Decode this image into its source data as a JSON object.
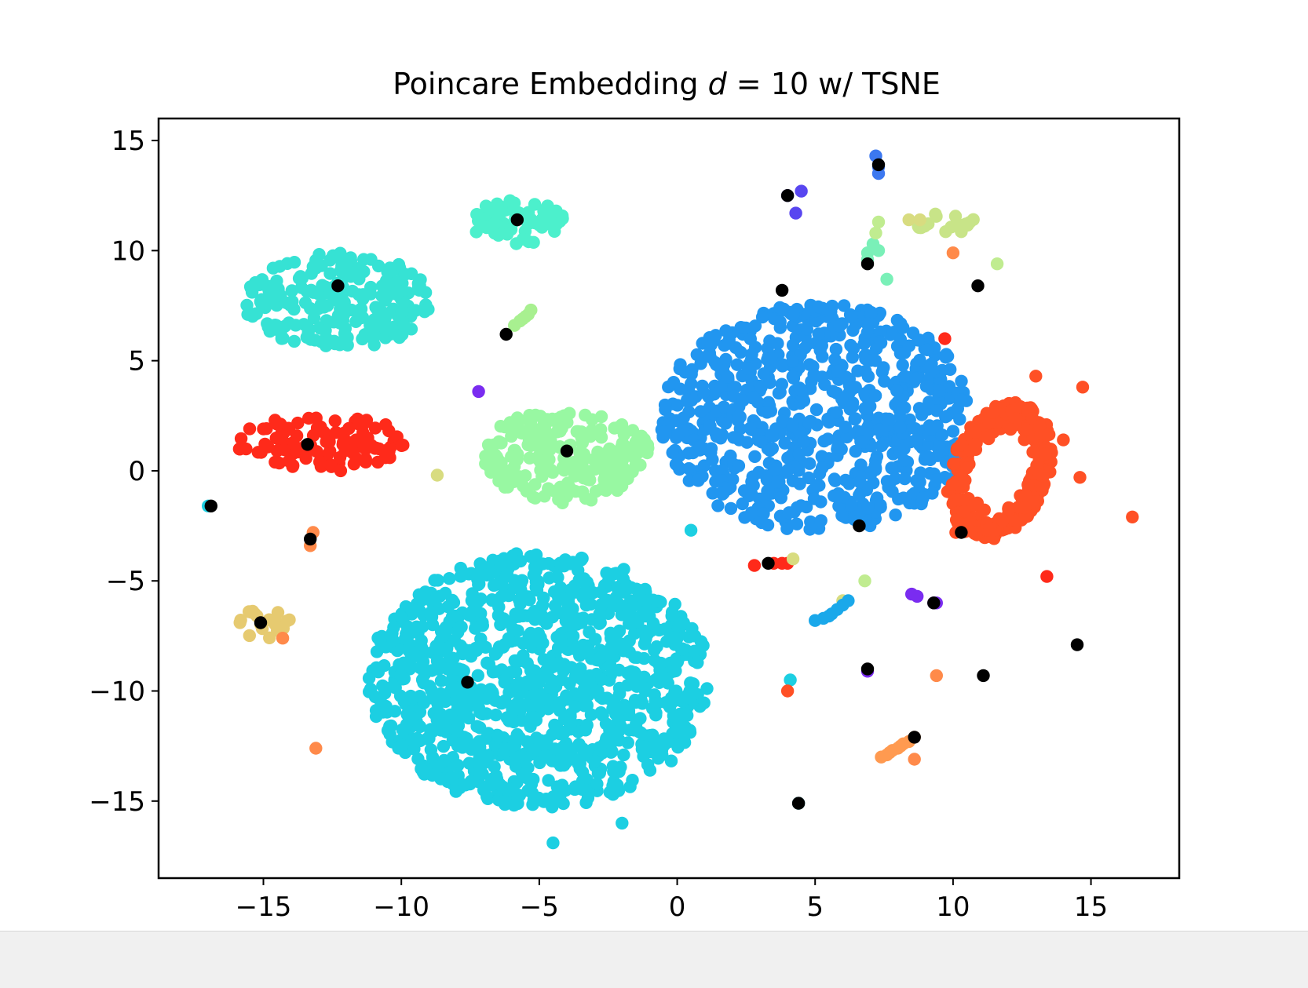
{
  "chart_data": {
    "type": "scatter",
    "title_prefix": "Poincare Embedding ",
    "title_var": "d",
    "title_suffix": " = 10 w/ TSNE",
    "xlim": [
      -18.8,
      18.2
    ],
    "ylim": [
      -18.5,
      16.0
    ],
    "xticks": [
      -15,
      -10,
      -5,
      0,
      5,
      10,
      15
    ],
    "yticks": [
      15,
      10,
      5,
      0,
      -5,
      -10,
      -15
    ],
    "xtick_labels": [
      "−15",
      "−10",
      "−5",
      "0",
      "5",
      "10",
      "15"
    ],
    "ytick_labels": [
      "15",
      "10",
      "5",
      "0",
      "−5",
      "−10",
      "−15"
    ],
    "grid": false,
    "legend": "none",
    "clusters": [
      {
        "color": "#1ccfe2",
        "center": [
          -5.0,
          -9.5
        ],
        "spread": [
          6.2,
          5.8
        ],
        "n": 1100,
        "shape": "disk"
      },
      {
        "color": "#2196f0",
        "center": [
          5.1,
          2.4
        ],
        "spread": [
          5.7,
          5.2
        ],
        "n": 760,
        "shape": "disk"
      },
      {
        "color": "#ff5025",
        "center": [
          11.7,
          0.0
        ],
        "spread": [
          3.8,
          3.0
        ],
        "n": 310,
        "shape": "ring"
      },
      {
        "color": "#36e2d4",
        "center": [
          -12.3,
          7.7
        ],
        "spread": [
          3.4,
          2.2
        ],
        "n": 230,
        "shape": "disk"
      },
      {
        "color": "#98f8a2",
        "center": [
          -4.0,
          0.7
        ],
        "spread": [
          3.0,
          2.2
        ],
        "n": 200,
        "shape": "disk"
      },
      {
        "color": "#ff2a1a",
        "center": [
          -12.8,
          1.3
        ],
        "spread": [
          3.2,
          1.2
        ],
        "n": 110,
        "shape": "disk"
      },
      {
        "color": "#4cf0cc",
        "center": [
          -5.8,
          11.3
        ],
        "spread": [
          1.7,
          1.0
        ],
        "n": 70,
        "shape": "disk"
      },
      {
        "color": "#e6ca70",
        "center": [
          -14.9,
          -7.0
        ],
        "spread": [
          1.0,
          0.8
        ],
        "n": 20,
        "shape": "disk"
      },
      {
        "color": "#c8e488",
        "center": [
          9.7,
          11.3
        ],
        "spread": [
          1.3,
          0.5
        ],
        "n": 18,
        "shape": "disk"
      }
    ],
    "points": [
      {
        "color": "#1ccfe2",
        "xy": [
          [
            -17.0,
            -1.6
          ],
          [
            0.5,
            -2.7
          ],
          [
            -4.5,
            -16.9
          ],
          [
            -2.0,
            -16.0
          ],
          [
            4.1,
            -9.5
          ],
          [
            4.4,
            -15.1
          ]
        ]
      },
      {
        "color": "#ff5025",
        "xy": [
          [
            13.0,
            4.3
          ],
          [
            14.7,
            3.8
          ],
          [
            14.0,
            1.4
          ],
          [
            14.6,
            -0.3
          ],
          [
            16.5,
            -2.1
          ],
          [
            10.1,
            -2.8
          ],
          [
            4.0,
            -10.0
          ]
        ]
      },
      {
        "color": "#ff2a1a",
        "xy": [
          [
            -15.0,
            1.9
          ],
          [
            -12.2,
            0.0
          ],
          [
            9.7,
            6.0
          ],
          [
            13.4,
            -4.8
          ],
          [
            2.8,
            -4.3
          ],
          [
            3.5,
            -4.2
          ],
          [
            3.8,
            -4.2
          ],
          [
            4.0,
            -4.2
          ]
        ]
      },
      {
        "color": "#7a2cf0",
        "xy": [
          [
            -7.2,
            3.6
          ],
          [
            8.5,
            -5.6
          ],
          [
            8.7,
            -5.7
          ],
          [
            9.3,
            -6.0
          ],
          [
            9.4,
            -6.0
          ],
          [
            6.9,
            -9.1
          ]
        ]
      },
      {
        "color": "#5846f0",
        "xy": [
          [
            4.0,
            12.5
          ],
          [
            4.5,
            12.7
          ],
          [
            4.3,
            11.7
          ]
        ]
      },
      {
        "color": "#3c78f0",
        "xy": [
          [
            7.2,
            14.3
          ],
          [
            7.3,
            13.8
          ],
          [
            7.3,
            13.5
          ]
        ]
      },
      {
        "color": "#a8f090",
        "xy": [
          [
            -5.9,
            6.6
          ],
          [
            -5.7,
            6.8
          ],
          [
            -5.6,
            6.9
          ],
          [
            -5.4,
            7.1
          ],
          [
            -5.3,
            7.3
          ],
          [
            -5.5,
            7.0
          ]
        ]
      },
      {
        "color": "#7af0b8",
        "xy": [
          [
            6.9,
            9.6
          ],
          [
            6.9,
            9.9
          ],
          [
            7.1,
            10.3
          ],
          [
            7.6,
            8.7
          ],
          [
            7.3,
            10.0
          ]
        ]
      },
      {
        "color": "#c0ec90",
        "xy": [
          [
            7.3,
            11.3
          ],
          [
            7.2,
            10.8
          ],
          [
            11.6,
            9.4
          ],
          [
            6.8,
            -5.0
          ]
        ]
      },
      {
        "color": "#d8dc80",
        "xy": [
          [
            8.4,
            11.4
          ],
          [
            8.8,
            11.4
          ],
          [
            -8.7,
            -0.2
          ],
          [
            6.0,
            -5.9
          ],
          [
            4.2,
            -4.0
          ]
        ]
      },
      {
        "color": "#ff8a4a",
        "xy": [
          [
            10.0,
            9.9
          ],
          [
            -13.1,
            -12.6
          ],
          [
            8.6,
            -13.1
          ],
          [
            9.4,
            -9.3
          ],
          [
            -14.3,
            -7.6
          ],
          [
            -13.3,
            -3.4
          ],
          [
            -13.2,
            -2.8
          ]
        ]
      },
      {
        "color": "#1aa8ea",
        "xy": [
          [
            5.0,
            -6.8
          ],
          [
            5.3,
            -6.7
          ],
          [
            5.6,
            -6.5
          ],
          [
            5.8,
            -6.3
          ],
          [
            6.0,
            -6.1
          ],
          [
            6.2,
            -5.9
          ],
          [
            5.5,
            -6.6
          ]
        ]
      },
      {
        "color": "#ff9a50",
        "xy": [
          [
            7.4,
            -13.0
          ],
          [
            7.6,
            -12.9
          ],
          [
            7.8,
            -12.7
          ],
          [
            8.0,
            -12.6
          ],
          [
            8.2,
            -12.4
          ],
          [
            8.4,
            -12.3
          ],
          [
            8.6,
            -12.1
          ],
          [
            7.7,
            -12.8
          ],
          [
            8.1,
            -12.5
          ]
        ]
      }
    ],
    "black_points": [
      [
        -12.3,
        8.4
      ],
      [
        -5.8,
        11.4
      ],
      [
        -6.2,
        6.2
      ],
      [
        -13.4,
        1.2
      ],
      [
        -4.0,
        0.9
      ],
      [
        -16.9,
        -1.6
      ],
      [
        -13.3,
        -3.1
      ],
      [
        -15.1,
        -6.9
      ],
      [
        -7.6,
        -9.6
      ],
      [
        3.8,
        8.2
      ],
      [
        4.0,
        12.5
      ],
      [
        7.3,
        13.9
      ],
      [
        6.9,
        9.4
      ],
      [
        10.9,
        8.4
      ],
      [
        6.6,
        -2.5
      ],
      [
        10.3,
        -2.8
      ],
      [
        3.3,
        -4.2
      ],
      [
        9.3,
        -6.0
      ],
      [
        14.5,
        -7.9
      ],
      [
        6.9,
        -9.0
      ],
      [
        11.1,
        -9.3
      ],
      [
        8.6,
        -12.1
      ],
      [
        4.4,
        -15.1
      ]
    ]
  }
}
